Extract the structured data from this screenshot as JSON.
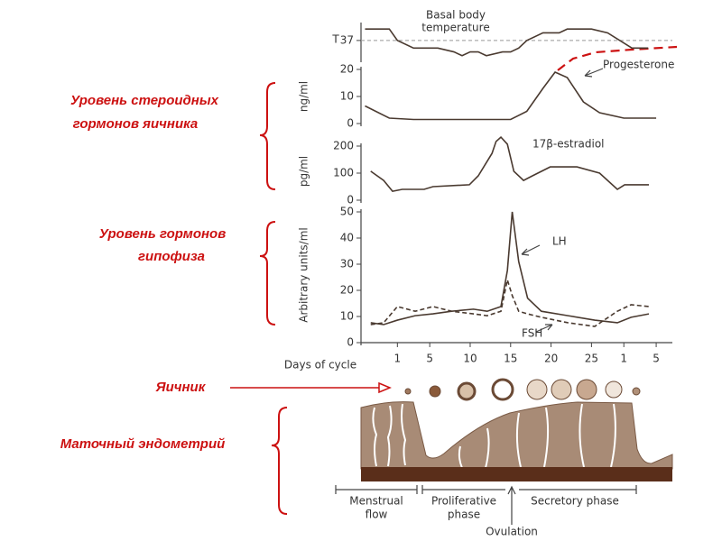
{
  "annotations": {
    "steroid_label": [
      "Уровень стероидных",
      "гормонов яичника"
    ],
    "pituitary_label": [
      "Уровень гормонов",
      "гипофиза"
    ],
    "ovary_label": "Яичник",
    "endometrium_label": "Маточный эндометрий",
    "phases": [
      "Menstrual",
      "flow",
      "Proliferative",
      "phase",
      "Secretory phase",
      "Ovulation"
    ]
  },
  "chart_data": [
    {
      "type": "line",
      "title": [
        "Basal body",
        "temperature"
      ],
      "ylabel": "T",
      "xlim": [
        -3.5,
        35
      ],
      "ylim": [
        36.5,
        37.4
      ],
      "yticks": [
        37
      ],
      "reference_line": true,
      "x": [
        -3,
        0,
        1,
        3,
        6,
        8,
        9,
        10,
        11,
        12,
        14,
        15,
        16,
        17,
        19,
        21,
        22,
        25,
        27,
        30,
        32
      ],
      "series": [
        {
          "name": null,
          "color": "#4a3a30",
          "values": [
            37.3,
            37.3,
            37.0,
            36.8,
            36.8,
            36.7,
            36.6,
            36.7,
            36.7,
            36.6,
            36.7,
            36.7,
            36.8,
            37.0,
            37.2,
            37.2,
            37.3,
            37.3,
            37.2,
            36.8,
            36.8
          ]
        }
      ]
    },
    {
      "type": "line",
      "ylabel": "ng/ml",
      "annotation": "Progesterone",
      "xlim": [
        -3.5,
        35
      ],
      "ylim": [
        0,
        20
      ],
      "yticks": [
        0,
        10,
        20
      ],
      "x": [
        -3,
        0,
        3,
        8,
        12,
        15,
        17,
        19,
        20.5,
        22,
        24,
        26,
        29,
        33
      ],
      "series": [
        {
          "name": null,
          "color": "#4a3a30",
          "values": [
            6.5,
            2,
            1.5,
            1.5,
            1.5,
            1.5,
            4.5,
            13,
            19,
            17,
            8,
            4,
            2,
            2
          ]
        }
      ]
    },
    {
      "type": "line",
      "ylabel": "pg/ml",
      "annotation": "17β-estradiol",
      "xlim": [
        -3.5,
        35
      ],
      "ylim": [
        0,
        200
      ],
      "yticks": [
        0,
        100,
        200
      ],
      "x": [
        -2.3,
        -0.7,
        0.4,
        1.6,
        4.3,
        5.4,
        9.9,
        11,
        12.7,
        13.2,
        13.8,
        14.6,
        15.4,
        16.6,
        17.7,
        19.9,
        21.6,
        23.2,
        26,
        28.2,
        29.1,
        32.1
      ],
      "series": [
        {
          "name": null,
          "color": "#4a3a30",
          "values": [
            107,
            73,
            33,
            40,
            40,
            50,
            57,
            90,
            173,
            217,
            233,
            207,
            107,
            73,
            90,
            123,
            123,
            123,
            100,
            40,
            57,
            57
          ]
        }
      ]
    },
    {
      "type": "line",
      "ylabel": "Arbitrary units/ml",
      "xlabel": "Days of cycle",
      "xlim": [
        -3.5,
        35
      ],
      "ylim": [
        0,
        50
      ],
      "yticks": [
        0,
        10,
        20,
        30,
        40,
        50
      ],
      "xticks": [
        1,
        5,
        10,
        15,
        20,
        25,
        {
          "value": 29,
          "label": "1"
        },
        {
          "value": 33,
          "label": "5"
        }
      ],
      "x": [
        -2.3,
        -0.7,
        1,
        3.2,
        5.4,
        7.7,
        10.4,
        12.1,
        13.8,
        14.6,
        15.2,
        16,
        17.1,
        18.8,
        22.1,
        25.4,
        28.2,
        29.9,
        32.1
      ],
      "series": [
        {
          "name": "LH",
          "color": "#4a3a30",
          "line_style": "solid",
          "values": [
            7.6,
            6.9,
            8.6,
            10.3,
            11,
            12,
            12.8,
            12,
            13.8,
            27.6,
            50,
            31,
            17,
            12,
            10.3,
            8.6,
            7.6,
            9.7,
            11
          ]
        },
        {
          "name": "FSH",
          "color": "#4a3a30",
          "line_style": "dashed",
          "values": [
            6.9,
            7.6,
            13.8,
            12,
            13.8,
            12,
            11,
            10.3,
            12,
            24,
            18,
            12,
            11,
            9.7,
            7.6,
            6.2,
            12,
            14.5,
            13.8
          ]
        }
      ]
    }
  ]
}
